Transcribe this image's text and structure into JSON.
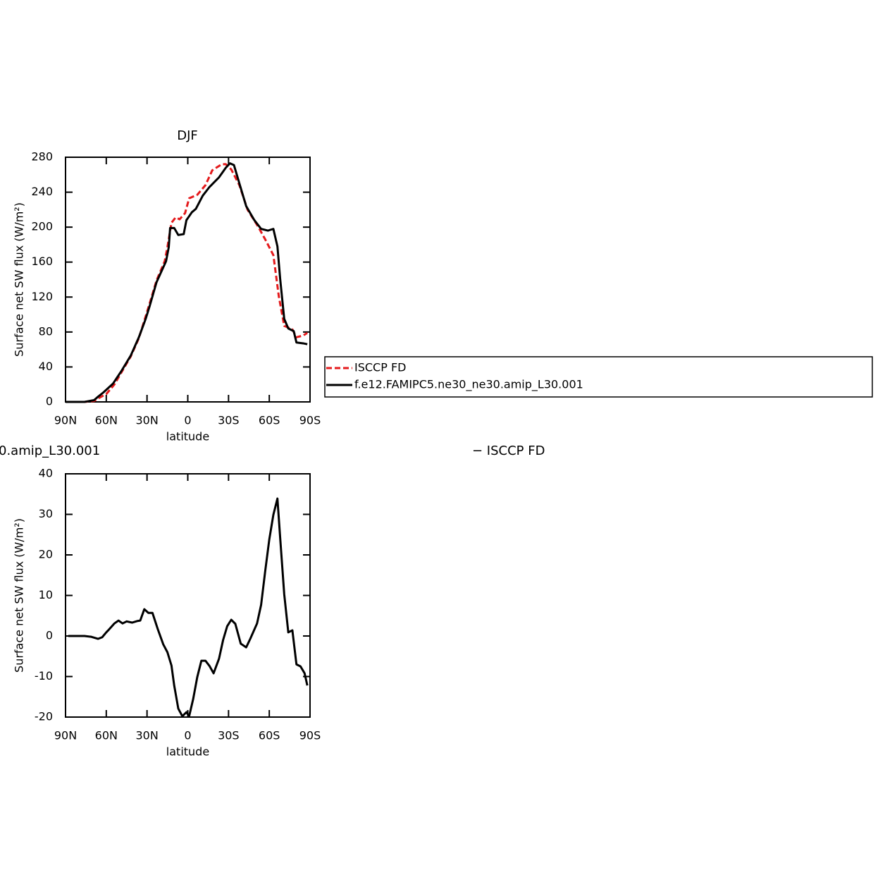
{
  "chart_data": [
    {
      "type": "line",
      "title": "DJF",
      "xlabel": "latitude",
      "ylabel": "Surface net SW flux (W/m²)",
      "xlim": [
        90,
        -90
      ],
      "ylim": [
        0,
        280
      ],
      "xticks": [
        {
          "value": 90,
          "label": "90N"
        },
        {
          "value": 60,
          "label": "60N"
        },
        {
          "value": 30,
          "label": "30N"
        },
        0,
        {
          "value": -30,
          "label": "30S"
        },
        {
          "value": -60,
          "label": "60S"
        },
        {
          "value": -90,
          "label": "90S"
        }
      ],
      "yticks": [
        0,
        40,
        80,
        120,
        160,
        200,
        240,
        280
      ],
      "series": [
        {
          "name": "ISCCP FD",
          "color": "#e41a1c",
          "dash": true,
          "x": [
            90,
            76,
            69,
            66,
            60,
            54,
            48,
            42,
            36,
            32,
            28,
            23,
            17,
            15,
            12,
            9,
            6,
            2,
            -1,
            -7,
            -13,
            -18,
            -25,
            -28,
            -32,
            -38,
            -44,
            -52,
            -57,
            -63,
            -67,
            -71,
            -77,
            -80,
            -85,
            -88
          ],
          "values": [
            0,
            0,
            1,
            4,
            9,
            20,
            36,
            52,
            73,
            93,
            113,
            139,
            161,
            177,
            205,
            211,
            209,
            216,
            233,
            237,
            248,
            265,
            272,
            272,
            266,
            248,
            220,
            200,
            186,
            168,
            121,
            87,
            83,
            74,
            76,
            79
          ]
        },
        {
          "name": "f.e12.FAMIPC5.ne30_ne30.amip_L30.001",
          "color": "#000000",
          "dash": false,
          "x": [
            90,
            76,
            69,
            66,
            62,
            55,
            49,
            42,
            36,
            31,
            28,
            23,
            16,
            14,
            13,
            10,
            7,
            3,
            1,
            -3,
            -6,
            -11,
            -16,
            -23,
            -28,
            -31,
            -34,
            -38,
            -43,
            -49,
            -54,
            -59,
            -63,
            -66,
            -68,
            -71,
            -74,
            -78,
            -80,
            -85,
            -88
          ],
          "values": [
            0,
            0,
            2,
            6,
            11,
            21,
            35,
            53,
            74,
            95,
            110,
            137,
            161,
            177,
            199,
            199,
            191,
            192,
            208,
            217,
            221,
            236,
            246,
            257,
            268,
            273,
            271,
            250,
            224,
            208,
            198,
            196,
            198,
            178,
            141,
            95,
            84,
            81,
            68,
            67,
            66
          ]
        }
      ],
      "legend": {
        "items": "series"
      }
    },
    {
      "type": "line",
      "title_left": "0.amip_L30.001",
      "title_right": "− ISCCP FD",
      "xlabel": "latitude",
      "ylabel": "Surface net SW flux (W/m²)",
      "xlim": [
        90,
        -90
      ],
      "ylim": [
        -20,
        40
      ],
      "xticks": [
        {
          "value": 90,
          "label": "90N"
        },
        {
          "value": 60,
          "label": "60N"
        },
        {
          "value": 30,
          "label": "30N"
        },
        0,
        {
          "value": -30,
          "label": "30S"
        },
        {
          "value": -60,
          "label": "60S"
        },
        {
          "value": -90,
          "label": "90S"
        }
      ],
      "yticks": [
        -20,
        -10,
        0,
        10,
        20,
        30,
        40
      ],
      "series": [
        {
          "color": "#000000",
          "dash": false,
          "x": [
            88,
            76,
            71,
            66,
            63,
            60,
            58,
            54,
            51,
            48,
            45,
            41,
            37,
            35,
            32,
            29,
            26,
            22,
            18,
            15,
            12,
            10,
            7,
            4,
            1,
            -1,
            -4,
            -7,
            -10,
            -13,
            -16,
            -19,
            -23,
            -26,
            -29,
            -32,
            -35,
            -39,
            -43,
            -46,
            -51,
            -54,
            -57,
            -60,
            -63,
            -66,
            -68,
            -71,
            -74,
            -77,
            -80,
            -83,
            -86,
            -88
          ],
          "values": [
            0,
            0,
            -0.2,
            -0.7,
            -0.3,
            0.9,
            1.6,
            3.1,
            3.8,
            3.1,
            3.6,
            3.3,
            3.7,
            3.8,
            6.6,
            5.7,
            5.7,
            1.6,
            -2.1,
            -4,
            -7.3,
            -12.2,
            -17.9,
            -19.8,
            -18.8,
            -19.8,
            -15.5,
            -10.1,
            -6.1,
            -6.1,
            -7.4,
            -9.2,
            -5.6,
            -1,
            2.4,
            4,
            3,
            -1.9,
            -2.8,
            -0.7,
            3.1,
            7.7,
            16,
            23.8,
            29.9,
            33.9,
            24.3,
            10.3,
            0.9,
            1.4,
            -7,
            -7.5,
            -9.2,
            -12.2
          ]
        }
      ]
    }
  ]
}
